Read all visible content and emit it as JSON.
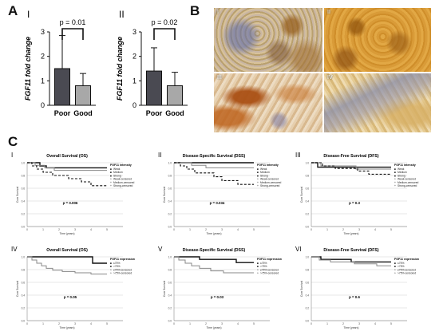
{
  "panels": {
    "a": "A",
    "b": "B",
    "c": "C"
  },
  "panel_a": [
    {
      "roman": "I",
      "pvalue": "p = 0.01",
      "ylabel": "FGF11 fold change",
      "yticks": [
        "0",
        "1",
        "2",
        "3"
      ],
      "categories": [
        "Poor",
        "Good"
      ],
      "bar_colors": [
        "#4a4a52",
        "#a8a8a8"
      ]
    },
    {
      "roman": "II",
      "pvalue": "p = 0.02",
      "ylabel": "FGF11 fold change",
      "yticks": [
        "0",
        "1",
        "2",
        "3"
      ],
      "categories": [
        "Poor",
        "Good"
      ],
      "bar_colors": [
        "#4a4a52",
        "#a8a8a8"
      ]
    }
  ],
  "panel_b": {
    "labels": [
      "I",
      "II",
      "III",
      "IV"
    ]
  },
  "panel_c": [
    {
      "roman": "I",
      "title": "Overall Survival (OS)",
      "legend_title": "FGF11 intensity",
      "legend": [
        "Weak",
        "Medium",
        "Strong",
        "Weak-censored",
        "Medium-censored",
        "Strong-censored"
      ],
      "pvalue": "p = 0.006",
      "ylabel": "Cum Survival",
      "xlabel": "Time (years)",
      "yticks": [
        "0.0",
        "0.2",
        "0.4",
        "0.6",
        "0.8",
        "1.0"
      ],
      "xticks": [
        "0",
        "1",
        "2",
        "3",
        "4",
        "5"
      ]
    },
    {
      "roman": "II",
      "title": "Disease-Specific Survival (DSS)",
      "legend_title": "FGF11 intensity",
      "legend": [
        "Weak",
        "Medium",
        "Strong",
        "Weak-censored",
        "Medium-censored",
        "Strong-censored"
      ],
      "pvalue": "p = 0.034",
      "ylabel": "Cum Survival",
      "xlabel": "Time (years)",
      "yticks": [
        "0.0",
        "0.2",
        "0.4",
        "0.6",
        "0.8",
        "1.0"
      ],
      "xticks": [
        "0",
        "1",
        "2",
        "3",
        "4",
        "5"
      ]
    },
    {
      "roman": "III",
      "title": "Disease-Free Survival (DFS)",
      "legend_title": "FGF11 intensity",
      "legend": [
        "Weak",
        "Medium",
        "Strong",
        "Weak-censored",
        "Medium-censored",
        "Strong-censored"
      ],
      "pvalue": "p = 0.3",
      "ylabel": "Cum Survival",
      "xlabel": "Time (years)",
      "yticks": [
        "0.0",
        "0.2",
        "0.4",
        "0.6",
        "0.8",
        "1.0"
      ],
      "xticks": [
        "0",
        "1",
        "2",
        "3",
        "4",
        "5"
      ]
    },
    {
      "roman": "IV",
      "title": "Overall Survival (OS)",
      "legend_title": "FGF11 expression",
      "legend": [
        "≤75%",
        ">75%",
        "≤75%-censored",
        ">75%-censored"
      ],
      "pvalue": "p = 0.05",
      "ylabel": "Cum Survival",
      "xlabel": "Time (years)",
      "yticks": [
        "0.0",
        "0.2",
        "0.4",
        "0.6",
        "0.8",
        "1.0"
      ],
      "xticks": [
        "0",
        "1",
        "2",
        "3",
        "4",
        "5"
      ]
    },
    {
      "roman": "V",
      "title": "Disease-Specific Survival (DSS)",
      "legend_title": "FGF11 expression",
      "legend": [
        "≤75%",
        ">75%",
        "≤75%-censored",
        ">75%-censored"
      ],
      "pvalue": "p = 0.03",
      "ylabel": "Cum Survival",
      "xlabel": "Time (years)",
      "yticks": [
        "0.0",
        "0.2",
        "0.4",
        "0.6",
        "0.8",
        "1.0"
      ],
      "xticks": [
        "0",
        "1",
        "2",
        "3",
        "4",
        "5"
      ]
    },
    {
      "roman": "VI",
      "title": "Disease-Free Survival (DFS)",
      "legend_title": "FGF11 expression",
      "legend": [
        "≤75%",
        ">75%",
        "≤75%-censored",
        ">75%-censored"
      ],
      "pvalue": "p = 0.6",
      "ylabel": "Cum Survival",
      "xlabel": "Time (years)",
      "yticks": [
        "0.0",
        "0.2",
        "0.4",
        "0.6",
        "0.8",
        "1.0"
      ],
      "xticks": [
        "0",
        "1",
        "2",
        "3",
        "4",
        "5"
      ]
    }
  ],
  "chart_data": [
    {
      "type": "bar",
      "panel": "A-I",
      "categories": [
        "Poor",
        "Good"
      ],
      "values": [
        1.5,
        0.8
      ],
      "error_upper": [
        2.85,
        1.3
      ],
      "ylabel": "FGF11 fold change",
      "ylim": [
        0,
        3
      ],
      "annotation": "p = 0.01"
    },
    {
      "type": "bar",
      "panel": "A-II",
      "categories": [
        "Poor",
        "Good"
      ],
      "values": [
        1.4,
        0.8
      ],
      "error_upper": [
        2.35,
        1.35
      ],
      "ylabel": "FGF11 fold change",
      "ylim": [
        0,
        3
      ],
      "annotation": "p = 0.02"
    },
    {
      "type": "line",
      "panel": "C-I",
      "xlim": [
        0,
        5
      ],
      "ylim": [
        0,
        1
      ],
      "series": [
        {
          "name": "Weak",
          "style": "solid-black",
          "x": [
            0,
            0.8,
            0.8,
            1.2,
            1.2,
            5
          ],
          "y": [
            1.0,
            1.0,
            0.95,
            0.95,
            0.92,
            0.92
          ]
        },
        {
          "name": "Medium",
          "style": "solid-gray",
          "x": [
            0,
            0.5,
            0.5,
            1.1,
            1.1,
            1.7,
            1.7,
            5
          ],
          "y": [
            1.0,
            1.0,
            0.96,
            0.96,
            0.92,
            0.92,
            0.88,
            0.88
          ]
        },
        {
          "name": "Strong",
          "style": "dashed-black",
          "x": [
            0,
            0.3,
            0.3,
            0.6,
            0.6,
            1.0,
            1.0,
            1.6,
            1.6,
            2.6,
            2.6,
            3.4,
            3.4,
            4.0,
            4.0,
            5
          ],
          "y": [
            1.0,
            1.0,
            0.95,
            0.95,
            0.9,
            0.9,
            0.85,
            0.85,
            0.8,
            0.8,
            0.75,
            0.75,
            0.7,
            0.7,
            0.64,
            0.64
          ]
        }
      ]
    },
    {
      "type": "line",
      "panel": "C-II",
      "xlim": [
        0,
        5
      ],
      "ylim": [
        0,
        1
      ],
      "series": [
        {
          "name": "Weak",
          "style": "solid-black",
          "x": [
            0,
            5
          ],
          "y": [
            1.0,
            1.0
          ]
        },
        {
          "name": "Medium",
          "style": "solid-gray",
          "x": [
            0,
            1.1,
            1.1,
            2.0,
            2.0,
            5
          ],
          "y": [
            1.0,
            1.0,
            0.96,
            0.96,
            0.92,
            0.92
          ]
        },
        {
          "name": "Strong",
          "style": "dashed-black",
          "x": [
            0,
            0.4,
            0.4,
            0.8,
            0.8,
            1.3,
            1.3,
            2.5,
            2.5,
            3.0,
            3.0,
            4.0,
            4.0,
            5
          ],
          "y": [
            1.0,
            1.0,
            0.95,
            0.95,
            0.9,
            0.9,
            0.84,
            0.84,
            0.78,
            0.78,
            0.72,
            0.72,
            0.66,
            0.66
          ]
        }
      ]
    },
    {
      "type": "line",
      "panel": "C-III",
      "xlim": [
        0,
        5
      ],
      "ylim": [
        0,
        1
      ],
      "series": [
        {
          "name": "Weak",
          "style": "solid-black",
          "x": [
            0,
            0.4,
            0.4,
            5
          ],
          "y": [
            1.0,
            1.0,
            0.93,
            0.93
          ]
        },
        {
          "name": "Medium",
          "style": "solid-gray",
          "x": [
            0,
            0.6,
            0.6,
            2.8,
            2.8,
            5
          ],
          "y": [
            1.0,
            1.0,
            0.95,
            0.95,
            0.9,
            0.9
          ]
        },
        {
          "name": "Strong",
          "style": "dashed-black",
          "x": [
            0,
            0.7,
            0.7,
            1.5,
            1.5,
            2.9,
            2.9,
            3.6,
            3.6,
            5
          ],
          "y": [
            1.0,
            1.0,
            0.95,
            0.95,
            0.91,
            0.91,
            0.87,
            0.87,
            0.82,
            0.82
          ]
        }
      ]
    },
    {
      "type": "line",
      "panel": "C-IV",
      "xlim": [
        0,
        5
      ],
      "ylim": [
        0,
        1
      ],
      "series": [
        {
          "name": "≤75%",
          "style": "solid-black",
          "x": [
            0,
            4.1,
            4.1,
            5
          ],
          "y": [
            1.0,
            1.0,
            0.9,
            0.9
          ]
        },
        {
          "name": ">75%",
          "style": "solid-gray",
          "x": [
            0,
            0.3,
            0.3,
            0.6,
            0.6,
            0.9,
            0.9,
            1.2,
            1.2,
            1.6,
            1.6,
            2.2,
            2.2,
            3.0,
            3.0,
            4.0,
            4.0,
            5
          ],
          "y": [
            1.0,
            1.0,
            0.95,
            0.95,
            0.9,
            0.9,
            0.86,
            0.86,
            0.82,
            0.82,
            0.79,
            0.79,
            0.77,
            0.77,
            0.75,
            0.75,
            0.73,
            0.73
          ]
        }
      ]
    },
    {
      "type": "line",
      "panel": "C-V",
      "xlim": [
        0,
        5
      ],
      "ylim": [
        0,
        1
      ],
      "series": [
        {
          "name": "≤75%",
          "style": "solid-black",
          "x": [
            0,
            1.6,
            1.6,
            3.9,
            3.9,
            5
          ],
          "y": [
            1.0,
            1.0,
            0.96,
            0.96,
            0.91,
            0.91
          ]
        },
        {
          "name": ">75%",
          "style": "solid-gray",
          "x": [
            0,
            0.3,
            0.3,
            0.7,
            0.7,
            1.1,
            1.1,
            1.6,
            1.6,
            2.3,
            2.3,
            3.1,
            3.1,
            5
          ],
          "y": [
            1.0,
            1.0,
            0.95,
            0.95,
            0.9,
            0.9,
            0.86,
            0.86,
            0.82,
            0.82,
            0.78,
            0.78,
            0.75,
            0.75
          ]
        }
      ]
    },
    {
      "type": "line",
      "panel": "C-VI",
      "xlim": [
        0,
        5
      ],
      "ylim": [
        0,
        1
      ],
      "series": [
        {
          "name": "≤75%",
          "style": "solid-black",
          "x": [
            0,
            0.6,
            0.6,
            2.5,
            2.5,
            5
          ],
          "y": [
            1.0,
            1.0,
            0.96,
            0.96,
            0.92,
            0.92
          ]
        },
        {
          "name": ">75%",
          "style": "solid-gray",
          "x": [
            0,
            0.5,
            0.5,
            1.2,
            1.2,
            2.7,
            2.7,
            4.1,
            4.1,
            5
          ],
          "y": [
            1.0,
            1.0,
            0.95,
            0.95,
            0.92,
            0.92,
            0.89,
            0.89,
            0.86,
            0.86
          ]
        }
      ]
    }
  ]
}
